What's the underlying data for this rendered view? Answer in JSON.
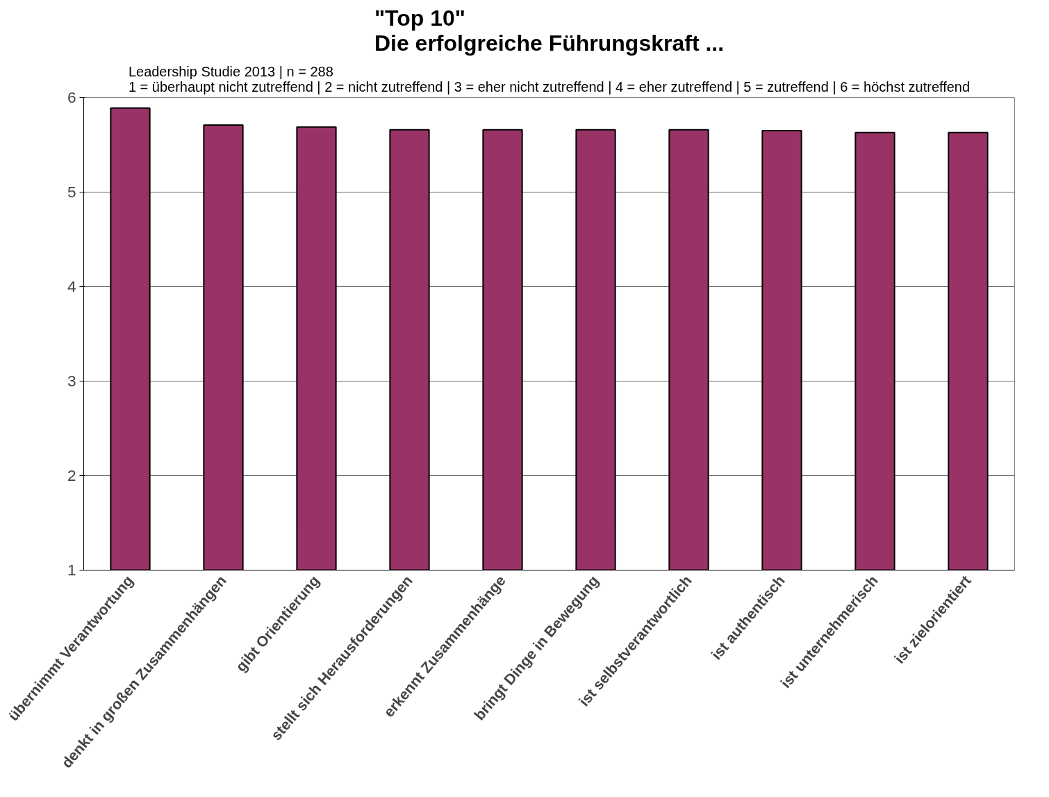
{
  "chart_data": {
    "type": "bar",
    "title": "\"Top 10\"\nDie erfolgreiche Führungskraft ...",
    "subtitle": "Leadership Studie 2013 | n = 288\n1 = überhaupt nicht zutreffend | 2 = nicht zutreffend | 3 = eher nicht zutreffend | 4 = eher zutreffend | 5 = zutreffend | 6 = höchst zutreffend",
    "categories": [
      "übernimmt Verantwortung",
      "denkt in großen Zusammenhängen",
      "gibt Orientierung",
      "stellt sich Herausforderungen",
      "erkennt Zusammenhänge",
      "bringt Dinge in Bewegung",
      "ist selbstverantwortlich",
      "ist authentisch",
      "ist unternehmerisch",
      "ist zielorientiert"
    ],
    "values": [
      5.89,
      5.71,
      5.69,
      5.66,
      5.66,
      5.66,
      5.66,
      5.65,
      5.63,
      5.63
    ],
    "color": "#993366",
    "ylim": [
      1,
      6
    ],
    "yticks": [
      1,
      2,
      3,
      4,
      5,
      6
    ],
    "grid": "y"
  }
}
